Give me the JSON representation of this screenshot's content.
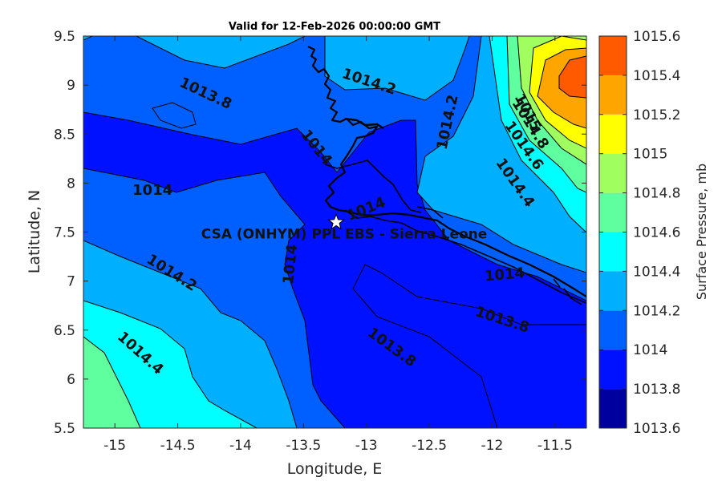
{
  "chart_data": {
    "type": "contourf",
    "title": "Valid for 12-Feb-2026 00:00:00 GMT",
    "xlabel": "Longitude, E",
    "ylabel": "Latitude, N",
    "xlim": [
      -15.25,
      -11.25
    ],
    "ylim": [
      5.5,
      9.5
    ],
    "xticks": [
      -15,
      -14.5,
      -14,
      -13.5,
      -13,
      -12.5,
      -12,
      -11.5
    ],
    "xtick_labels": [
      "-15",
      "-14.5",
      "-14",
      "-13.5",
      "-13",
      "-12.5",
      "-12",
      "-11.5"
    ],
    "yticks": [
      5.5,
      6,
      6.5,
      7,
      7.5,
      8,
      8.5,
      9,
      9.5
    ],
    "ytick_labels": [
      "5.5",
      "6",
      "6.5",
      "7",
      "7.5",
      "8",
      "8.5",
      "9",
      "9.5"
    ],
    "colorbar": {
      "label": "Surface Pressure, mb",
      "levels": [
        1013.6,
        1013.8,
        1014,
        1014.2,
        1014.4,
        1014.6,
        1014.8,
        1015,
        1015.2,
        1015.4,
        1015.6
      ],
      "tick_labels": [
        "1013.6",
        "1013.8",
        "1014",
        "1014.2",
        "1014.4",
        "1014.6",
        "1014.8",
        "1015",
        "1015.2",
        "1015.4",
        "1015.6"
      ],
      "colors": [
        "#00009f",
        "#0011ff",
        "#0060ff",
        "#00b0ff",
        "#00ffff",
        "#5fffa0",
        "#a0ff5f",
        "#ffff00",
        "#ffa500",
        "#ff5a00",
        "#ff0000"
      ]
    },
    "contour_labels": [
      {
        "text": "1014.2",
        "lon": -12.98,
        "lat": 9.03,
        "angle": 18
      },
      {
        "text": "1014.2",
        "lon": -12.35,
        "lat": 8.62,
        "angle": -78
      },
      {
        "text": "1013.8",
        "lon": -14.28,
        "lat": 8.91,
        "angle": 25
      },
      {
        "text": "1014",
        "lon": -13.4,
        "lat": 8.36,
        "angle": 52
      },
      {
        "text": "1014",
        "lon": -14.7,
        "lat": 7.92,
        "angle": 0
      },
      {
        "text": "1014",
        "lon": -13.0,
        "lat": 7.73,
        "angle": -22
      },
      {
        "text": "1014",
        "lon": -13.6,
        "lat": 7.17,
        "angle": -84
      },
      {
        "text": "1014.2",
        "lon": -14.55,
        "lat": 7.08,
        "angle": 32
      },
      {
        "text": "1014.4",
        "lon": -14.8,
        "lat": 6.26,
        "angle": 42
      },
      {
        "text": "1013.8",
        "lon": -12.8,
        "lat": 6.32,
        "angle": 36
      },
      {
        "text": "1013.8",
        "lon": -11.92,
        "lat": 6.6,
        "angle": 18
      },
      {
        "text": "1014",
        "lon": -11.9,
        "lat": 7.06,
        "angle": -5
      },
      {
        "text": "1014.4",
        "lon": -11.82,
        "lat": 8.0,
        "angle": 55
      },
      {
        "text": "1014.6",
        "lon": -11.75,
        "lat": 8.38,
        "angle": 55
      },
      {
        "text": "1014.8",
        "lon": -11.7,
        "lat": 8.6,
        "angle": 58
      },
      {
        "text": "1015",
        "lon": -11.72,
        "lat": 8.72,
        "angle": 62
      }
    ],
    "site": {
      "label": "CSA (ONHYM) PPL EBS  - Sierra Leone",
      "lon": -13.24,
      "lat": 7.6
    }
  }
}
